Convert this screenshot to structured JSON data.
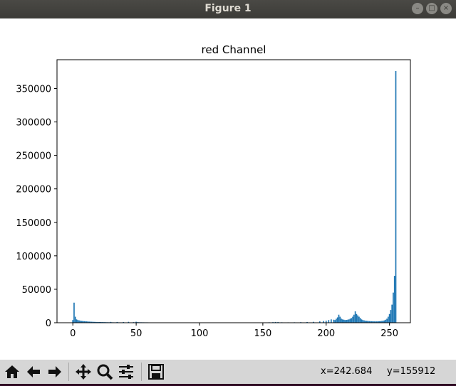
{
  "window": {
    "title": "Figure 1"
  },
  "toolbar": {
    "buttons": [
      {
        "name": "home-icon"
      },
      {
        "name": "back-arrow-icon"
      },
      {
        "name": "forward-arrow-icon"
      },
      {
        "name": "pan-icon"
      },
      {
        "name": "zoom-icon"
      },
      {
        "name": "configure-subplots-icon"
      },
      {
        "name": "save-icon"
      }
    ],
    "x_readout": "x=242.684",
    "y_readout": "y=155912"
  },
  "chart_data": {
    "type": "bar",
    "title": "red Channel",
    "xlabel": "",
    "ylabel": "",
    "xlim": [
      -12,
      267
    ],
    "ylim": [
      0,
      393000
    ],
    "xticks": [
      0,
      50,
      100,
      150,
      200,
      250
    ],
    "yticks": [
      0,
      50000,
      100000,
      150000,
      200000,
      250000,
      300000,
      350000
    ],
    "color": "#1f77b4",
    "bins": [
      [
        0,
        4000
      ],
      [
        1,
        30000
      ],
      [
        2,
        9000
      ],
      [
        3,
        5000
      ],
      [
        4,
        4000
      ],
      [
        5,
        3500
      ],
      [
        6,
        3000
      ],
      [
        7,
        2700
      ],
      [
        8,
        2500
      ],
      [
        9,
        2300
      ],
      [
        10,
        2100
      ],
      [
        11,
        2000
      ],
      [
        12,
        1800
      ],
      [
        13,
        1700
      ],
      [
        14,
        1600
      ],
      [
        15,
        1500
      ],
      [
        16,
        1400
      ],
      [
        17,
        1300
      ],
      [
        18,
        1250
      ],
      [
        19,
        1200
      ],
      [
        20,
        1150
      ],
      [
        21,
        1100
      ],
      [
        22,
        1050
      ],
      [
        23,
        1000
      ],
      [
        24,
        950
      ],
      [
        25,
        900
      ],
      [
        26,
        850
      ],
      [
        27,
        800
      ],
      [
        28,
        750
      ],
      [
        29,
        700
      ],
      [
        30,
        1300
      ],
      [
        31,
        700
      ],
      [
        32,
        650
      ],
      [
        33,
        600
      ],
      [
        34,
        600
      ],
      [
        35,
        1200
      ],
      [
        36,
        600
      ],
      [
        37,
        580
      ],
      [
        38,
        560
      ],
      [
        39,
        540
      ],
      [
        40,
        1100
      ],
      [
        41,
        520
      ],
      [
        42,
        500
      ],
      [
        43,
        500
      ],
      [
        44,
        1400
      ],
      [
        45,
        500
      ],
      [
        46,
        500
      ],
      [
        47,
        500
      ],
      [
        48,
        900
      ],
      [
        49,
        500
      ],
      [
        50,
        1500
      ],
      [
        51,
        900
      ],
      [
        52,
        800
      ],
      [
        53,
        700
      ],
      [
        54,
        700
      ],
      [
        55,
        650
      ],
      [
        56,
        650
      ],
      [
        57,
        600
      ],
      [
        58,
        600
      ],
      [
        59,
        600
      ],
      [
        60,
        550
      ],
      [
        65,
        400
      ],
      [
        70,
        380
      ],
      [
        75,
        360
      ],
      [
        80,
        350
      ],
      [
        85,
        340
      ],
      [
        90,
        330
      ],
      [
        95,
        320
      ],
      [
        100,
        310
      ],
      [
        105,
        300
      ],
      [
        110,
        300
      ],
      [
        115,
        300
      ],
      [
        120,
        300
      ],
      [
        125,
        300
      ],
      [
        130,
        320
      ],
      [
        135,
        350
      ],
      [
        140,
        380
      ],
      [
        145,
        400
      ],
      [
        150,
        500
      ],
      [
        155,
        700
      ],
      [
        158,
        900
      ],
      [
        160,
        1200
      ],
      [
        162,
        1000
      ],
      [
        165,
        700
      ],
      [
        170,
        600
      ],
      [
        175,
        700
      ],
      [
        180,
        900
      ],
      [
        185,
        1100
      ],
      [
        190,
        1400
      ],
      [
        195,
        2000
      ],
      [
        198,
        2500
      ],
      [
        200,
        3000
      ],
      [
        202,
        4000
      ],
      [
        204,
        5000
      ],
      [
        206,
        4500
      ],
      [
        207,
        4000
      ],
      [
        208,
        6000
      ],
      [
        209,
        8000
      ],
      [
        210,
        12000
      ],
      [
        211,
        9000
      ],
      [
        212,
        6000
      ],
      [
        213,
        5000
      ],
      [
        214,
        4500
      ],
      [
        215,
        4000
      ],
      [
        216,
        4200
      ],
      [
        217,
        4500
      ],
      [
        218,
        5000
      ],
      [
        219,
        6000
      ],
      [
        220,
        7000
      ],
      [
        221,
        9000
      ],
      [
        222,
        12000
      ],
      [
        223,
        17000
      ],
      [
        224,
        13000
      ],
      [
        225,
        11000
      ],
      [
        226,
        9000
      ],
      [
        227,
        7000
      ],
      [
        228,
        5000
      ],
      [
        229,
        4000
      ],
      [
        230,
        3500
      ],
      [
        231,
        3000
      ],
      [
        232,
        2800
      ],
      [
        233,
        2600
      ],
      [
        234,
        2400
      ],
      [
        235,
        2300
      ],
      [
        236,
        2200
      ],
      [
        237,
        2100
      ],
      [
        238,
        2000
      ],
      [
        239,
        2000
      ],
      [
        240,
        2000
      ],
      [
        241,
        2100
      ],
      [
        242,
        2200
      ],
      [
        243,
        2400
      ],
      [
        244,
        2700
      ],
      [
        245,
        3000
      ],
      [
        246,
        3500
      ],
      [
        247,
        4500
      ],
      [
        248,
        6000
      ],
      [
        249,
        9000
      ],
      [
        250,
        13000
      ],
      [
        251,
        19000
      ],
      [
        252,
        27000
      ],
      [
        253,
        45000
      ],
      [
        254,
        70000
      ],
      [
        255,
        376000
      ]
    ]
  }
}
